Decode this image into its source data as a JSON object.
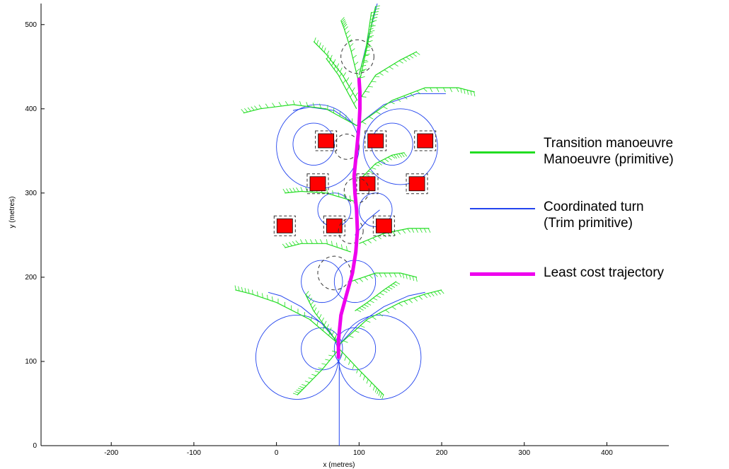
{
  "chart_data": {
    "type": "line",
    "xlabel": "x (metres)",
    "ylabel": "y (metres)",
    "xlim": [
      -285,
      475
    ],
    "ylim": [
      0,
      525
    ],
    "xticks": [
      -200,
      -100,
      0,
      100,
      200,
      300,
      400
    ],
    "yticks": [
      0,
      100,
      200,
      300,
      400,
      500
    ],
    "grid": false,
    "legend_position": "right",
    "series": [
      {
        "name": "Transition manoeuvre Manoeuvre (primitive)",
        "color": "#22dd22"
      },
      {
        "name": "Coordinated turn (Trim primitive)",
        "color": "#2244ee"
      },
      {
        "name": "Least cost trajectory",
        "color": "#ee00ee",
        "x": [
          75,
          75,
          78,
          85,
          92,
          96,
          98,
          97,
          95,
          94,
          97,
          100,
          101,
          101,
          100
        ],
        "y": [
          105,
          125,
          155,
          180,
          205,
          230,
          255,
          280,
          300,
          320,
          350,
          380,
          400,
          420,
          435
        ]
      }
    ],
    "obstacles": [
      {
        "x": 60,
        "y": 362
      },
      {
        "x": 120,
        "y": 362
      },
      {
        "x": 180,
        "y": 362
      },
      {
        "x": 50,
        "y": 311
      },
      {
        "x": 110,
        "y": 311
      },
      {
        "x": 170,
        "y": 311
      },
      {
        "x": 10,
        "y": 261
      },
      {
        "x": 70,
        "y": 261
      },
      {
        "x": 130,
        "y": 261
      }
    ],
    "dashed_circles": [
      {
        "x": 98,
        "y": 462,
        "r": 20
      },
      {
        "x": 85,
        "y": 355,
        "r": 15
      },
      {
        "x": 97,
        "y": 303,
        "r": 15
      },
      {
        "x": 90,
        "y": 255,
        "r": 15
      },
      {
        "x": 70,
        "y": 205,
        "r": 20
      }
    ],
    "trim_arcs": [
      {
        "x": 55,
        "y": 115,
        "r": 25
      },
      {
        "x": 95,
        "y": 115,
        "r": 25
      },
      {
        "x": 25,
        "y": 105,
        "r": 50
      },
      {
        "x": 125,
        "y": 105,
        "r": 50
      },
      {
        "x": 55,
        "y": 195,
        "r": 25
      },
      {
        "x": 95,
        "y": 195,
        "r": 25
      },
      {
        "x": 45,
        "y": 358,
        "r": 25
      },
      {
        "x": 140,
        "y": 358,
        "r": 25
      },
      {
        "x": 50,
        "y": 355,
        "r": 50
      },
      {
        "x": 150,
        "y": 355,
        "r": 45
      },
      {
        "x": 70,
        "y": 280,
        "r": 20
      },
      {
        "x": 120,
        "y": 280,
        "r": 20
      }
    ],
    "green_branches": [
      {
        "x": [
          76,
          40,
          0,
          -30,
          -50
        ],
        "y": [
          120,
          150,
          170,
          180,
          185
        ]
      },
      {
        "x": [
          76,
          110,
          150,
          180,
          200
        ],
        "y": [
          120,
          150,
          170,
          180,
          185
        ]
      },
      {
        "x": [
          76,
          60,
          45,
          35
        ],
        "y": [
          120,
          140,
          160,
          180
        ]
      },
      {
        "x": [
          76,
          100,
          120,
          130
        ],
        "y": [
          115,
          90,
          70,
          60
        ]
      },
      {
        "x": [
          76,
          55,
          35,
          25
        ],
        "y": [
          115,
          90,
          70,
          60
        ]
      },
      {
        "x": [
          90,
          120,
          150,
          170
        ],
        "y": [
          195,
          205,
          205,
          200
        ]
      },
      {
        "x": [
          95,
          110,
          130,
          145
        ],
        "y": [
          160,
          170,
          185,
          195
        ]
      },
      {
        "x": [
          90,
          60,
          30,
          10
        ],
        "y": [
          230,
          240,
          240,
          235
        ]
      },
      {
        "x": [
          100,
          130,
          160,
          185
        ],
        "y": [
          240,
          252,
          258,
          258
        ]
      },
      {
        "x": [
          95,
          60,
          30,
          10
        ],
        "y": [
          290,
          300,
          302,
          300
        ]
      },
      {
        "x": [
          100,
          120,
          140,
          155
        ],
        "y": [
          315,
          335,
          345,
          348
        ]
      },
      {
        "x": [
          97,
          60,
          20,
          -20,
          -40
        ],
        "y": [
          380,
          400,
          405,
          400,
          395
        ]
      },
      {
        "x": [
          97,
          140,
          180,
          220,
          240
        ],
        "y": [
          380,
          410,
          425,
          425,
          420
        ]
      },
      {
        "x": [
          98,
          80,
          60,
          45
        ],
        "y": [
          410,
          440,
          465,
          480
        ]
      },
      {
        "x": [
          100,
          120,
          150,
          170
        ],
        "y": [
          410,
          440,
          458,
          468
        ]
      },
      {
        "x": [
          100,
          90,
          82,
          78
        ],
        "y": [
          430,
          470,
          495,
          505
        ]
      },
      {
        "x": [
          100,
          110,
          116,
          120
        ],
        "y": [
          430,
          475,
          505,
          522
        ]
      },
      {
        "x": [
          97,
          75,
          60
        ],
        "y": [
          400,
          440,
          460
        ]
      },
      {
        "x": [
          100,
          108,
          112,
          115
        ],
        "y": [
          440,
          470,
          495,
          515
        ]
      }
    ],
    "blue_branches": [
      {
        "x": [
          76,
          76
        ],
        "y": [
          0,
          100
        ]
      },
      {
        "x": [
          76,
          55,
          30,
          5,
          -10
        ],
        "y": [
          120,
          145,
          165,
          178,
          182
        ]
      },
      {
        "x": [
          76,
          100,
          130,
          160,
          180
        ],
        "y": [
          120,
          145,
          165,
          178,
          182
        ]
      },
      {
        "x": [
          95,
          110,
          125
        ],
        "y": [
          250,
          268,
          280
        ]
      },
      {
        "x": [
          97,
          70,
          40,
          20
        ],
        "y": [
          380,
          398,
          402,
          398
        ]
      },
      {
        "x": [
          97,
          130,
          170,
          205
        ],
        "y": [
          380,
          405,
          418,
          418
        ]
      },
      {
        "x": [
          100,
          110,
          118,
          122
        ],
        "y": [
          440,
          480,
          510,
          525
        ]
      }
    ]
  },
  "legend": [
    {
      "text": "Transition manoeuvre\nManoeuvre (primitive)",
      "color": "#22dd22"
    },
    {
      "text": "Coordinated          turn\n(Trim primitive)",
      "color": "#2244ee"
    },
    {
      "text": "Least cost trajectory",
      "color": "#ee00ee"
    }
  ]
}
